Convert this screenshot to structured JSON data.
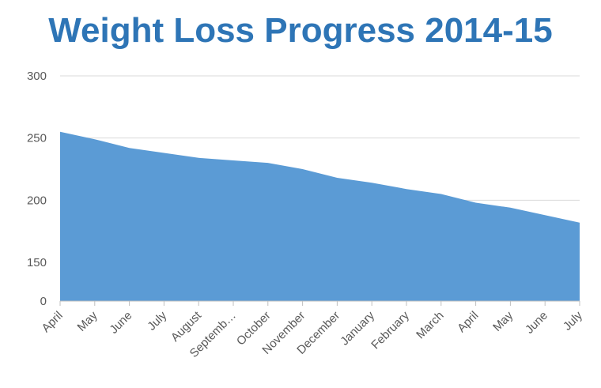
{
  "chart_data": {
    "type": "area",
    "title": "Weight Loss Progress 2014-15",
    "categories": [
      "April",
      "May",
      "June",
      "July",
      "August",
      "Septemb…",
      "October",
      "November",
      "December",
      "January",
      "February",
      "March",
      "April",
      "May",
      "June",
      "July"
    ],
    "series": [
      {
        "values": [
          255,
          249,
          242,
          238,
          234,
          232,
          230,
          225,
          218,
          214,
          209,
          205,
          198,
          194,
          188,
          182
        ]
      }
    ],
    "y_ticks": [
      {
        "label": "300",
        "value": 300
      },
      {
        "label": "250",
        "value": 250
      },
      {
        "label": "200",
        "value": 200
      },
      {
        "label": "150",
        "value": 150
      },
      {
        "label": "0",
        "value": 0
      }
    ],
    "y_axis_note": "axis is broken: labels 150 and 0 appear near the bottom",
    "grid": true,
    "colors": {
      "fill": "#5b9bd5",
      "title": "#2e75b6",
      "grid": "#d9d9d9",
      "axis": "#bfbfbf",
      "tick_text": "#595959"
    }
  }
}
